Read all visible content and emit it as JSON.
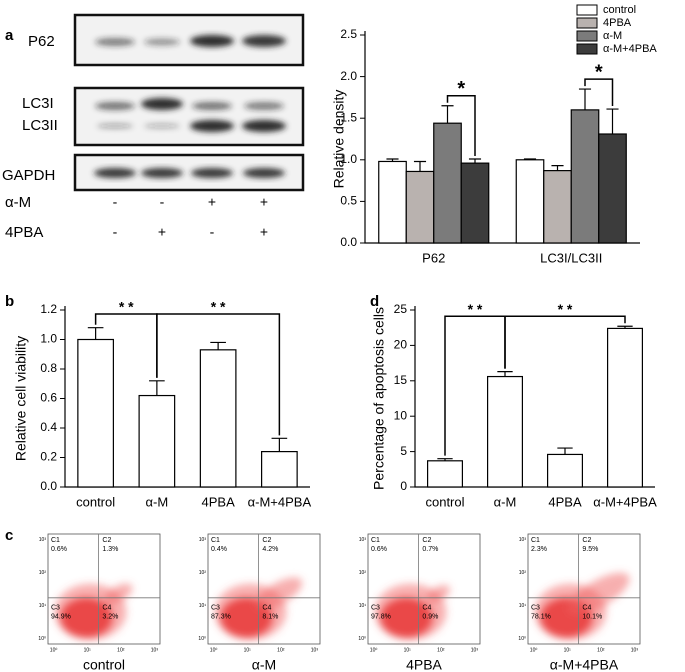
{
  "panels": [
    "a",
    "b",
    "c",
    "d"
  ],
  "blot": {
    "bands": [
      "P62",
      "LC3I",
      "LC3II",
      "GAPDH"
    ],
    "treatments": [
      {
        "name": "α-M",
        "signs": [
          "-",
          "-",
          "+",
          "+"
        ]
      },
      {
        "name": "4PBA",
        "signs": [
          "-",
          "+",
          "-",
          "+"
        ]
      }
    ]
  },
  "chart_data": [
    {
      "type": "bar",
      "y_label": "Relative density",
      "categories": [
        "P62",
        "LC3I/LC3II"
      ],
      "series": [
        {
          "name": "control",
          "color": "#ffffff",
          "values": [
            0.98,
            1.0
          ],
          "errors": [
            0.03,
            0.01
          ]
        },
        {
          "name": "4PBA",
          "color": "#b9b2af",
          "values": [
            0.86,
            0.87
          ],
          "errors": [
            0.12,
            0.06
          ]
        },
        {
          "name": "α-M",
          "color": "#7b7b7b",
          "values": [
            1.44,
            1.6
          ],
          "errors": [
            0.21,
            0.25
          ]
        },
        {
          "name": "α-M+4PBA",
          "color": "#3c3c3c",
          "values": [
            0.96,
            1.31
          ],
          "errors": [
            0.05,
            0.3
          ]
        }
      ],
      "ylim": [
        0,
        2.5
      ],
      "yticks": [
        {
          "value": 0,
          "label": "0.0"
        },
        0.5,
        {
          "value": 1,
          "label": "1.0"
        },
        1.5,
        {
          "value": 2,
          "label": "2.0"
        },
        2.5
      ],
      "annotations": [
        "*",
        "*"
      ]
    },
    {
      "type": "bar",
      "y_label": "Relative cell viability",
      "categories": [
        "control",
        "α-M",
        "4PBA",
        "α-M+4PBA"
      ],
      "color": "#ffffff",
      "values": [
        1.0,
        0.62,
        0.93,
        0.24
      ],
      "errors": [
        0.08,
        0.1,
        0.05,
        0.09
      ],
      "ylim": [
        0,
        1.2
      ],
      "yticks": [
        {
          "value": 0,
          "label": "0.0"
        },
        0.2,
        0.4,
        0.6,
        0.8,
        {
          "value": 1,
          "label": "1.0"
        },
        1.2
      ],
      "annotations": [
        "* *",
        "* *"
      ]
    },
    {
      "type": "bar",
      "y_label": "Percentage of apoptosis cells",
      "categories": [
        "control",
        "α-M",
        "4PBA",
        "α-M+4PBA"
      ],
      "color": "#ffffff",
      "values": [
        3.7,
        15.6,
        4.6,
        22.4
      ],
      "errors": [
        0.3,
        0.7,
        0.9,
        0.3
      ],
      "ylim": [
        0,
        25
      ],
      "yticks": [
        0,
        5,
        10,
        15,
        20,
        25
      ],
      "annotations": [
        "* *",
        "* *"
      ]
    }
  ],
  "flow_cytometry": {
    "decades": [
      "10⁰",
      "10¹",
      "10²",
      "10³"
    ],
    "plots": [
      {
        "label": "control",
        "quadrants": [
          [
            "C1",
            "0.6%"
          ],
          [
            "C2",
            "1.3%"
          ],
          [
            "C3",
            "94.9%"
          ],
          [
            "C4",
            "3.2%"
          ]
        ]
      },
      {
        "label": "α-M",
        "quadrants": [
          [
            "C1",
            "0.4%"
          ],
          [
            "C2",
            "4.2%"
          ],
          [
            "C3",
            "87.3%"
          ],
          [
            "C4",
            "8.1%"
          ]
        ]
      },
      {
        "label": "4PBA",
        "quadrants": [
          [
            "C1",
            "0.6%"
          ],
          [
            "C2",
            "0.7%"
          ],
          [
            "C3",
            "97.8%"
          ],
          [
            "C4",
            "0.9%"
          ]
        ]
      },
      {
        "label": "α-M+4PBA",
        "quadrants": [
          [
            "C1",
            "2.3%"
          ],
          [
            "C2",
            "9.5%"
          ],
          [
            "C3",
            "78.1%"
          ],
          [
            "C4",
            "10.1%"
          ]
        ]
      }
    ]
  }
}
